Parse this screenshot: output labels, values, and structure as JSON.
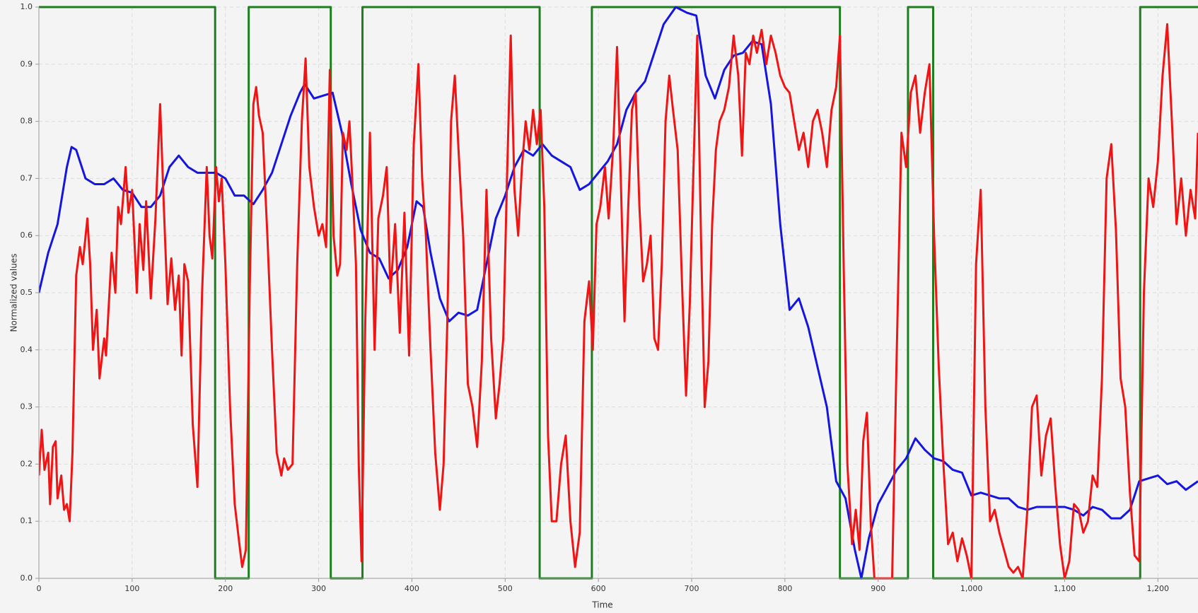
{
  "chart_data": {
    "type": "line",
    "x_label": "Time",
    "y_label": "Normalized values",
    "xlim": [
      0,
      1243
    ],
    "ylim": [
      0,
      1
    ],
    "xticks": [
      0,
      100,
      200,
      300,
      400,
      500,
      600,
      700,
      800,
      900,
      {
        "value": 1000,
        "label": "1,000"
      },
      {
        "value": 1100,
        "label": "1,100"
      },
      {
        "value": 1200,
        "label": "1,200"
      }
    ],
    "yticks": [
      {
        "value": 0,
        "label": "0.0"
      },
      0.1,
      0.2,
      0.3,
      0.4,
      0.5,
      0.6,
      0.7,
      0.8,
      0.9,
      {
        "value": 1,
        "label": "1.0"
      }
    ],
    "grid": true,
    "series": [
      {
        "color": "#1e7d1e",
        "x": [
          0,
          189,
          189,
          225,
          225,
          313,
          313,
          347,
          347,
          537,
          537,
          593,
          593,
          859,
          859,
          932,
          932,
          959,
          959,
          1181,
          1181,
          1243
        ],
        "values": [
          1,
          1,
          0,
          0,
          1,
          1,
          0,
          0,
          1,
          1,
          0,
          0,
          1,
          1,
          0,
          0,
          1,
          1,
          0,
          0,
          1,
          1
        ]
      },
      {
        "color": "#1515e0",
        "x": [
          0,
          10,
          20,
          30,
          35,
          40,
          50,
          60,
          70,
          80,
          90,
          100,
          110,
          120,
          130,
          140,
          150,
          160,
          170,
          180,
          190,
          200,
          210,
          220,
          230,
          240,
          250,
          260,
          270,
          280,
          285,
          295,
          305,
          315,
          325,
          335,
          345,
          355,
          365,
          375,
          385,
          395,
          405,
          412,
          420,
          430,
          440,
          450,
          460,
          470,
          480,
          490,
          500,
          510,
          520,
          530,
          540,
          550,
          560,
          570,
          580,
          590,
          600,
          610,
          620,
          630,
          640,
          650,
          660,
          670,
          683,
          695,
          705,
          715,
          725,
          735,
          745,
          755,
          765,
          775,
          785,
          795,
          805,
          815,
          825,
          835,
          845,
          855,
          865,
          875,
          882,
          890,
          900,
          910,
          920,
          930,
          940,
          950,
          960,
          970,
          980,
          990,
          1000,
          1010,
          1020,
          1030,
          1040,
          1050,
          1060,
          1070,
          1080,
          1090,
          1100,
          1110,
          1120,
          1130,
          1140,
          1150,
          1160,
          1170,
          1180,
          1190,
          1200,
          1210,
          1220,
          1230,
          1243
        ],
        "values": [
          0.5,
          0.57,
          0.62,
          0.72,
          0.755,
          0.75,
          0.7,
          0.69,
          0.69,
          0.7,
          0.68,
          0.675,
          0.65,
          0.65,
          0.67,
          0.72,
          0.74,
          0.72,
          0.71,
          0.71,
          0.71,
          0.7,
          0.67,
          0.67,
          0.655,
          0.68,
          0.71,
          0.76,
          0.81,
          0.85,
          0.865,
          0.84,
          0.845,
          0.85,
          0.78,
          0.69,
          0.61,
          0.57,
          0.56,
          0.525,
          0.54,
          0.58,
          0.66,
          0.65,
          0.57,
          0.49,
          0.45,
          0.465,
          0.46,
          0.47,
          0.55,
          0.63,
          0.67,
          0.72,
          0.75,
          0.74,
          0.76,
          0.74,
          0.73,
          0.72,
          0.68,
          0.69,
          0.71,
          0.73,
          0.76,
          0.82,
          0.85,
          0.87,
          0.92,
          0.97,
          1.0,
          0.99,
          0.985,
          0.88,
          0.84,
          0.89,
          0.915,
          0.92,
          0.94,
          0.935,
          0.83,
          0.62,
          0.47,
          0.49,
          0.44,
          0.37,
          0.3,
          0.17,
          0.14,
          0.05,
          0.0,
          0.07,
          0.13,
          0.16,
          0.19,
          0.21,
          0.245,
          0.225,
          0.21,
          0.205,
          0.19,
          0.185,
          0.145,
          0.15,
          0.145,
          0.14,
          0.14,
          0.125,
          0.12,
          0.125,
          0.125,
          0.125,
          0.125,
          0.12,
          0.11,
          0.125,
          0.12,
          0.105,
          0.105,
          0.12,
          0.17,
          0.175,
          0.18,
          0.165,
          0.17,
          0.155,
          0.17
        ]
      },
      {
        "color": "#f01515",
        "x": [
          0,
          3,
          6,
          10,
          12,
          15,
          18,
          20,
          24,
          27,
          30,
          33,
          36,
          40,
          44,
          47,
          52,
          55,
          58,
          62,
          65,
          70,
          72,
          78,
          82,
          85,
          88,
          93,
          96,
          100,
          105,
          108,
          112,
          115,
          120,
          125,
          130,
          134,
          138,
          142,
          146,
          150,
          153,
          156,
          160,
          165,
          170,
          175,
          180,
          183,
          186,
          190,
          193,
          196,
          200,
          205,
          210,
          215,
          218,
          222,
          226,
          230,
          233,
          236,
          240,
          245,
          250,
          255,
          260,
          263,
          267,
          272,
          277,
          282,
          286,
          290,
          295,
          300,
          304,
          308,
          312,
          316,
          320,
          323,
          326,
          330,
          333,
          336,
          340,
          343,
          346,
          350,
          355,
          360,
          364,
          369,
          373,
          377,
          382,
          387,
          392,
          397,
          402,
          407,
          411,
          415,
          420,
          425,
          430,
          434,
          438,
          442,
          446,
          450,
          455,
          460,
          465,
          470,
          475,
          480,
          485,
          490,
          494,
          498,
          502,
          506,
          510,
          514,
          518,
          522,
          526,
          530,
          534,
          538,
          542,
          546,
          550,
          555,
          560,
          565,
          570,
          575,
          580,
          585,
          590,
          594,
          598,
          602,
          607,
          611,
          616,
          620,
          624,
          628,
          632,
          636,
          640,
          644,
          648,
          652,
          656,
          660,
          664,
          668,
          672,
          676,
          680,
          685,
          690,
          694,
          698,
          702,
          706,
          710,
          714,
          718,
          722,
          726,
          730,
          735,
          740,
          745,
          750,
          754,
          758,
          762,
          766,
          770,
          775,
          780,
          785,
          790,
          795,
          800,
          805,
          810,
          815,
          820,
          825,
          830,
          835,
          840,
          845,
          850,
          855,
          859,
          863,
          867,
          872,
          876,
          880,
          884,
          888,
          892,
          896,
          900,
          915,
          920,
          925,
          930,
          935,
          940,
          945,
          950,
          955,
          960,
          965,
          970,
          975,
          980,
          985,
          990,
          995,
          1000,
          1005,
          1010,
          1015,
          1020,
          1025,
          1030,
          1035,
          1040,
          1045,
          1050,
          1055,
          1060,
          1065,
          1070,
          1075,
          1080,
          1085,
          1090,
          1095,
          1100,
          1105,
          1110,
          1115,
          1120,
          1125,
          1130,
          1135,
          1140,
          1145,
          1150,
          1155,
          1160,
          1165,
          1170,
          1175,
          1180,
          1185,
          1190,
          1195,
          1200,
          1205,
          1210,
          1215,
          1220,
          1225,
          1230,
          1235,
          1240,
          1243
        ],
        "values": [
          0.18,
          0.26,
          0.19,
          0.22,
          0.13,
          0.23,
          0.24,
          0.14,
          0.18,
          0.12,
          0.13,
          0.1,
          0.22,
          0.53,
          0.58,
          0.55,
          0.63,
          0.55,
          0.4,
          0.47,
          0.35,
          0.42,
          0.39,
          0.57,
          0.5,
          0.65,
          0.62,
          0.72,
          0.64,
          0.68,
          0.5,
          0.62,
          0.54,
          0.66,
          0.49,
          0.63,
          0.83,
          0.65,
          0.48,
          0.56,
          0.47,
          0.53,
          0.39,
          0.55,
          0.52,
          0.27,
          0.16,
          0.5,
          0.72,
          0.6,
          0.56,
          0.72,
          0.66,
          0.7,
          0.55,
          0.3,
          0.13,
          0.06,
          0.02,
          0.05,
          0.5,
          0.83,
          0.86,
          0.81,
          0.78,
          0.6,
          0.4,
          0.22,
          0.18,
          0.21,
          0.19,
          0.2,
          0.55,
          0.8,
          0.91,
          0.72,
          0.65,
          0.6,
          0.62,
          0.58,
          0.89,
          0.6,
          0.53,
          0.55,
          0.78,
          0.75,
          0.8,
          0.7,
          0.55,
          0.2,
          0.03,
          0.45,
          0.78,
          0.4,
          0.63,
          0.67,
          0.72,
          0.5,
          0.62,
          0.43,
          0.64,
          0.39,
          0.76,
          0.9,
          0.7,
          0.6,
          0.4,
          0.22,
          0.12,
          0.2,
          0.45,
          0.8,
          0.88,
          0.75,
          0.6,
          0.34,
          0.3,
          0.23,
          0.38,
          0.68,
          0.42,
          0.28,
          0.34,
          0.42,
          0.7,
          0.95,
          0.68,
          0.6,
          0.72,
          0.8,
          0.75,
          0.82,
          0.76,
          0.82,
          0.65,
          0.25,
          0.1,
          0.1,
          0.2,
          0.25,
          0.1,
          0.02,
          0.08,
          0.45,
          0.52,
          0.4,
          0.62,
          0.65,
          0.72,
          0.63,
          0.76,
          0.93,
          0.7,
          0.45,
          0.65,
          0.82,
          0.85,
          0.65,
          0.52,
          0.55,
          0.6,
          0.42,
          0.4,
          0.55,
          0.8,
          0.88,
          0.82,
          0.75,
          0.5,
          0.32,
          0.48,
          0.72,
          0.95,
          0.6,
          0.3,
          0.38,
          0.62,
          0.75,
          0.8,
          0.82,
          0.86,
          0.95,
          0.88,
          0.74,
          0.92,
          0.9,
          0.95,
          0.92,
          0.96,
          0.9,
          0.95,
          0.92,
          0.88,
          0.86,
          0.85,
          0.8,
          0.75,
          0.78,
          0.72,
          0.8,
          0.82,
          0.78,
          0.72,
          0.82,
          0.86,
          0.95,
          0.55,
          0.2,
          0.06,
          0.12,
          0.05,
          0.24,
          0.29,
          0.1,
          0.0,
          0.0,
          0.0,
          0.4,
          0.78,
          0.72,
          0.85,
          0.88,
          0.78,
          0.85,
          0.9,
          0.6,
          0.37,
          0.2,
          0.06,
          0.08,
          0.03,
          0.07,
          0.04,
          0.0,
          0.55,
          0.68,
          0.3,
          0.1,
          0.12,
          0.08,
          0.05,
          0.02,
          0.01,
          0.02,
          0.0,
          0.12,
          0.3,
          0.32,
          0.18,
          0.25,
          0.28,
          0.16,
          0.06,
          0.0,
          0.03,
          0.13,
          0.12,
          0.08,
          0.1,
          0.18,
          0.16,
          0.35,
          0.7,
          0.76,
          0.61,
          0.35,
          0.3,
          0.15,
          0.04,
          0.03,
          0.5,
          0.7,
          0.65,
          0.73,
          0.88,
          0.97,
          0.8,
          0.62,
          0.7,
          0.6,
          0.68,
          0.63,
          0.78
        ]
      }
    ]
  }
}
